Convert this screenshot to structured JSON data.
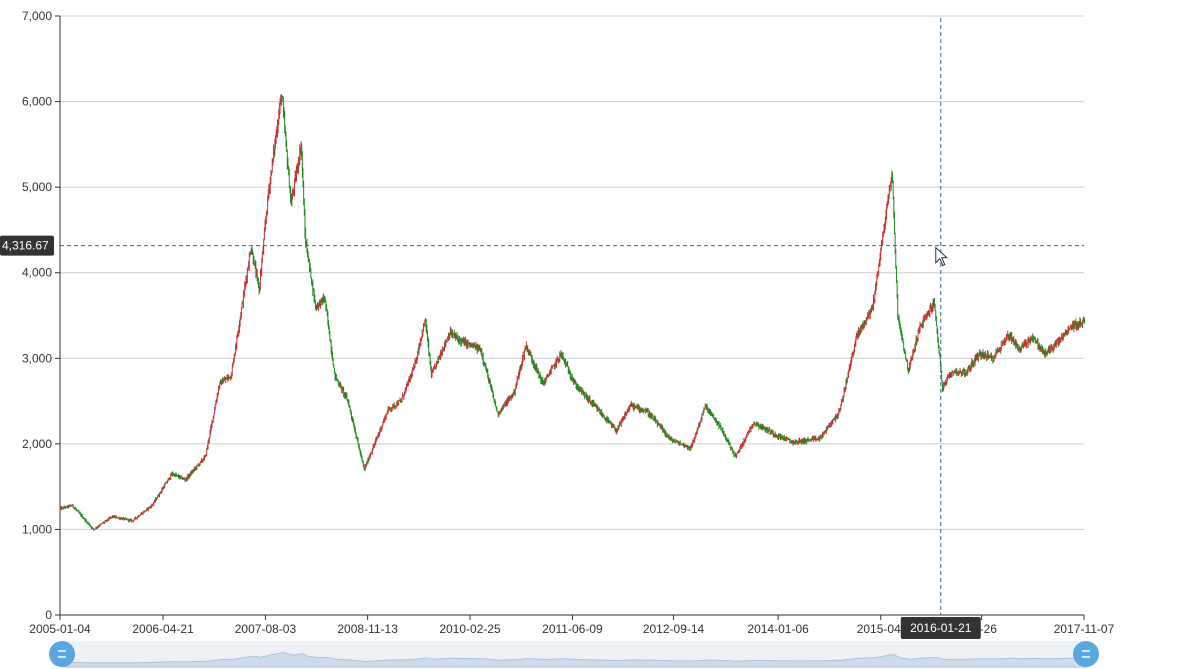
{
  "chart_data": {
    "type": "candlestick",
    "ylim": [
      0,
      7000
    ],
    "yticks": [
      0,
      1000,
      2000,
      3000,
      4000,
      5000,
      6000,
      7000
    ],
    "yticks_labels": [
      "0",
      "1,000",
      "2,000",
      "3,000",
      "4,000",
      "5,000",
      "6,000",
      "7,000"
    ],
    "xlim": [
      "2005-01-04",
      "2017-11-07"
    ],
    "xticks_labels": [
      "2005-01-04",
      "2006-04-21",
      "2007-08-03",
      "2008-11-13",
      "2010-02-25",
      "2011-06-09",
      "2012-09-14",
      "2014-01-06",
      "2015-04-",
      "07-26",
      "2017-11-07"
    ],
    "xticks_dates": [
      "2005-01-04",
      "2006-04-21",
      "2007-08-03",
      "2008-11-13",
      "2010-02-25",
      "2011-06-09",
      "2012-09-14",
      "2014-01-06",
      "2015-04-21",
      "2016-07-26",
      "2017-11-07"
    ],
    "up_color": "#c23531",
    "down_color": "#1e8a1e",
    "grid": "horizontal",
    "close_series": [
      [
        "2005-01-04",
        1242
      ],
      [
        "2005-03-01",
        1280
      ],
      [
        "2005-06-06",
        1000
      ],
      [
        "2005-09-01",
        1150
      ],
      [
        "2005-12-01",
        1100
      ],
      [
        "2006-03-01",
        1280
      ],
      [
        "2006-06-01",
        1650
      ],
      [
        "2006-08-01",
        1580
      ],
      [
        "2006-11-01",
        1850
      ],
      [
        "2007-01-04",
        2700
      ],
      [
        "2007-02-27",
        2800
      ],
      [
        "2007-05-29",
        4300
      ],
      [
        "2007-07-05",
        3800
      ],
      [
        "2007-08-15",
        4900
      ],
      [
        "2007-10-16",
        6100
      ],
      [
        "2007-11-28",
        4800
      ],
      [
        "2008-01-14",
        5500
      ],
      [
        "2008-02-01",
        4400
      ],
      [
        "2008-03-20",
        3600
      ],
      [
        "2008-05-01",
        3700
      ],
      [
        "2008-06-15",
        2800
      ],
      [
        "2008-08-15",
        2500
      ],
      [
        "2008-10-28",
        1700
      ],
      [
        "2008-12-15",
        2000
      ],
      [
        "2009-02-15",
        2400
      ],
      [
        "2009-04-15",
        2500
      ],
      [
        "2009-06-15",
        2900
      ],
      [
        "2009-08-04",
        3450
      ],
      [
        "2009-09-01",
        2800
      ],
      [
        "2009-11-24",
        3300
      ],
      [
        "2010-01-15",
        3200
      ],
      [
        "2010-04-15",
        3100
      ],
      [
        "2010-07-02",
        2350
      ],
      [
        "2010-09-15",
        2600
      ],
      [
        "2010-11-08",
        3150
      ],
      [
        "2011-01-25",
        2700
      ],
      [
        "2011-04-18",
        3050
      ],
      [
        "2011-06-20",
        2700
      ],
      [
        "2011-09-15",
        2450
      ],
      [
        "2011-12-28",
        2150
      ],
      [
        "2012-03-01",
        2450
      ],
      [
        "2012-05-15",
        2380
      ],
      [
        "2012-09-01",
        2050
      ],
      [
        "2012-12-03",
        1950
      ],
      [
        "2013-02-06",
        2440
      ],
      [
        "2013-04-15",
        2200
      ],
      [
        "2013-06-25",
        1850
      ],
      [
        "2013-09-15",
        2250
      ],
      [
        "2013-12-31",
        2100
      ],
      [
        "2014-03-15",
        2020
      ],
      [
        "2014-07-15",
        2060
      ],
      [
        "2014-10-15",
        2380
      ],
      [
        "2014-12-31",
        3250
      ],
      [
        "2015-03-15",
        3600
      ],
      [
        "2015-06-12",
        5178
      ],
      [
        "2015-07-08",
        3500
      ],
      [
        "2015-08-26",
        2850
      ],
      [
        "2015-10-15",
        3350
      ],
      [
        "2015-12-22",
        3650
      ],
      [
        "2016-01-21",
        2880
      ],
      [
        "2016-01-28",
        2650
      ],
      [
        "2016-03-15",
        2850
      ],
      [
        "2016-05-15",
        2830
      ],
      [
        "2016-07-15",
        3050
      ],
      [
        "2016-09-15",
        3000
      ],
      [
        "2016-11-29",
        3280
      ],
      [
        "2017-01-16",
        3100
      ],
      [
        "2017-03-15",
        3250
      ],
      [
        "2017-05-11",
        3050
      ],
      [
        "2017-07-15",
        3200
      ],
      [
        "2017-09-15",
        3380
      ],
      [
        "2017-11-07",
        3430
      ],
      [
        "2017-11-30",
        3300
      ]
    ]
  },
  "crosshair": {
    "x_date": "2016-01-21",
    "y_value": 4316.67,
    "y_label": "4,316.67",
    "x_label": "2016-01-21"
  },
  "data_zoom": {
    "start": "2005-01-04",
    "end": "2017-11-07",
    "handle_color": "#5aa7df",
    "fill_color": "#cfdce8"
  }
}
